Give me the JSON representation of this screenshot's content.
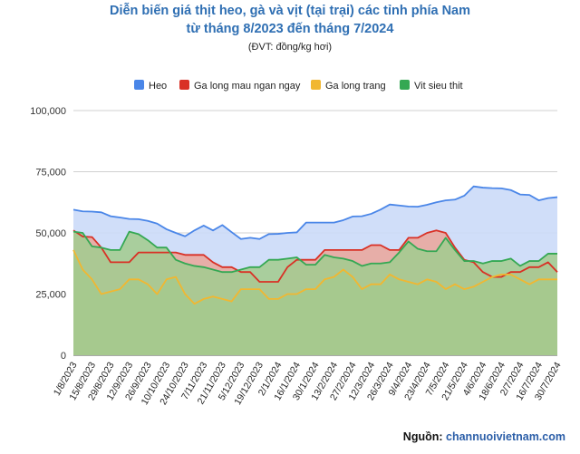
{
  "title_line1": "Diễn biến giá thịt heo, gà và vịt (tại trại) các tỉnh phía Nam",
  "title_line2": "từ tháng 8/2023 đến tháng 7/2024",
  "unit_note": "(ĐVT: đồng/kg hơi)",
  "source_label": "Nguồn: ",
  "source_site": "channuoivietnam.com",
  "chart_data": {
    "type": "area",
    "ylim": [
      0,
      100000
    ],
    "y_ticks": [
      "100,000",
      "75,000",
      "50,000",
      "25,000",
      "0"
    ],
    "y_tick_values": [
      100000,
      75000,
      50000,
      25000,
      0
    ],
    "grid": true,
    "legend_position": "top",
    "x": [
      "1/8/2023",
      "8/8/2023",
      "15/8/2023",
      "22/8/2023",
      "29/8/2023",
      "5/9/2023",
      "12/9/2023",
      "19/9/2023",
      "26/9/2023",
      "3/10/2023",
      "10/10/2023",
      "17/10/2023",
      "24/10/2023",
      "31/10/2023",
      "7/11/2023",
      "14/11/2023",
      "21/11/2023",
      "28/11/2023",
      "5/12/2023",
      "12/12/2023",
      "19/12/2023",
      "26/12/2023",
      "2/1/2024",
      "9/1/2024",
      "16/1/2024",
      "23/1/2024",
      "30/1/2024",
      "6/2/2024",
      "13/2/2024",
      "20/2/2024",
      "27/2/2024",
      "5/3/2024",
      "12/3/2024",
      "19/3/2024",
      "26/3/2024",
      "2/4/2024",
      "9/4/2024",
      "16/4/2024",
      "23/4/2024",
      "30/4/2024",
      "7/5/2024",
      "14/5/2024",
      "21/5/2024",
      "28/5/2024",
      "4/6/2024",
      "11/6/2024",
      "18/6/2024",
      "25/6/2024",
      "2/7/2024",
      "9/7/2024",
      "16/7/2024",
      "23/7/2024",
      "30/7/2024"
    ],
    "x_tick_labels": [
      "1/8/2023",
      "15/8/2023",
      "29/8/2023",
      "12/9/2023",
      "26/9/2023",
      "10/10/2023",
      "24/10/2023",
      "7/11/2023",
      "21/11/2023",
      "5/12/2023",
      "19/12/2023",
      "2/1/2024",
      "16/1/2024",
      "30/1/2024",
      "13/2/2024",
      "27/2/2024",
      "12/3/2024",
      "26/3/2024",
      "9/4/2024",
      "23/4/2024",
      "7/5/2024",
      "21/5/2024",
      "4/6/2024",
      "18/6/2024",
      "2/7/2024",
      "16/7/2024",
      "30/7/2024"
    ],
    "series": [
      {
        "name": "Heo",
        "color": "#4a86e8",
        "fill": "#c9daf8",
        "values": [
          59500,
          58800,
          58700,
          58400,
          56800,
          56300,
          55700,
          55600,
          54900,
          53800,
          51500,
          50000,
          48600,
          51000,
          53000,
          51000,
          53200,
          50300,
          47500,
          48000,
          47500,
          49500,
          49600,
          50000,
          50200,
          54200,
          54200,
          54200,
          54200,
          55200,
          56700,
          56800,
          57800,
          59500,
          61600,
          61200,
          60800,
          60700,
          61500,
          62500,
          63300,
          63600,
          65200,
          69000,
          68500,
          68300,
          68200,
          67500,
          65700,
          65500,
          63300,
          64200,
          64600
        ]
      },
      {
        "name": "Ga long mau ngan ngay",
        "color": "#d93025",
        "fill": "#e9a79c",
        "values": [
          51000,
          48500,
          48300,
          44000,
          38000,
          38000,
          38000,
          42000,
          42000,
          42000,
          42000,
          42000,
          41000,
          41000,
          41000,
          38000,
          36000,
          36000,
          34000,
          34000,
          30000,
          30000,
          30000,
          36000,
          39000,
          39000,
          39000,
          43000,
          43000,
          43000,
          43000,
          43000,
          45000,
          45000,
          43000,
          43000,
          48000,
          48000,
          50000,
          51000,
          50000,
          44000,
          39000,
          38000,
          34000,
          32000,
          32000,
          34000,
          34000,
          36000,
          36000,
          38000,
          34000
        ]
      },
      {
        "name": "Ga long trang",
        "color": "#f1b731",
        "fill": "#b7b87c",
        "values": [
          43000,
          35000,
          31000,
          25000,
          26000,
          27000,
          31000,
          31000,
          29000,
          25000,
          31000,
          32000,
          25000,
          21000,
          23000,
          24000,
          23000,
          22000,
          27000,
          27000,
          27000,
          23000,
          23000,
          25000,
          25000,
          27000,
          27000,
          31000,
          32000,
          35000,
          32000,
          27000,
          29000,
          29000,
          33000,
          31000,
          30000,
          29000,
          31000,
          30000,
          27000,
          29000,
          27000,
          28000,
          30000,
          32000,
          33000,
          33000,
          31000,
          29000,
          31000,
          31000,
          31000
        ]
      },
      {
        "name": "Vit sieu thit",
        "color": "#34a853",
        "fill": "#a3cc8f",
        "values": [
          50500,
          50000,
          44500,
          44000,
          43000,
          43000,
          50500,
          49500,
          47000,
          44000,
          44000,
          39000,
          37500,
          36500,
          36000,
          35000,
          34000,
          34000,
          35000,
          36000,
          36000,
          39000,
          39000,
          39500,
          40000,
          37000,
          37000,
          41000,
          40000,
          39500,
          38500,
          36500,
          37500,
          37500,
          38000,
          42000,
          46500,
          43500,
          42500,
          42500,
          48000,
          43000,
          38500,
          38500,
          37500,
          38500,
          38500,
          39500,
          36500,
          38500,
          38500,
          41500,
          41500
        ]
      }
    ]
  }
}
